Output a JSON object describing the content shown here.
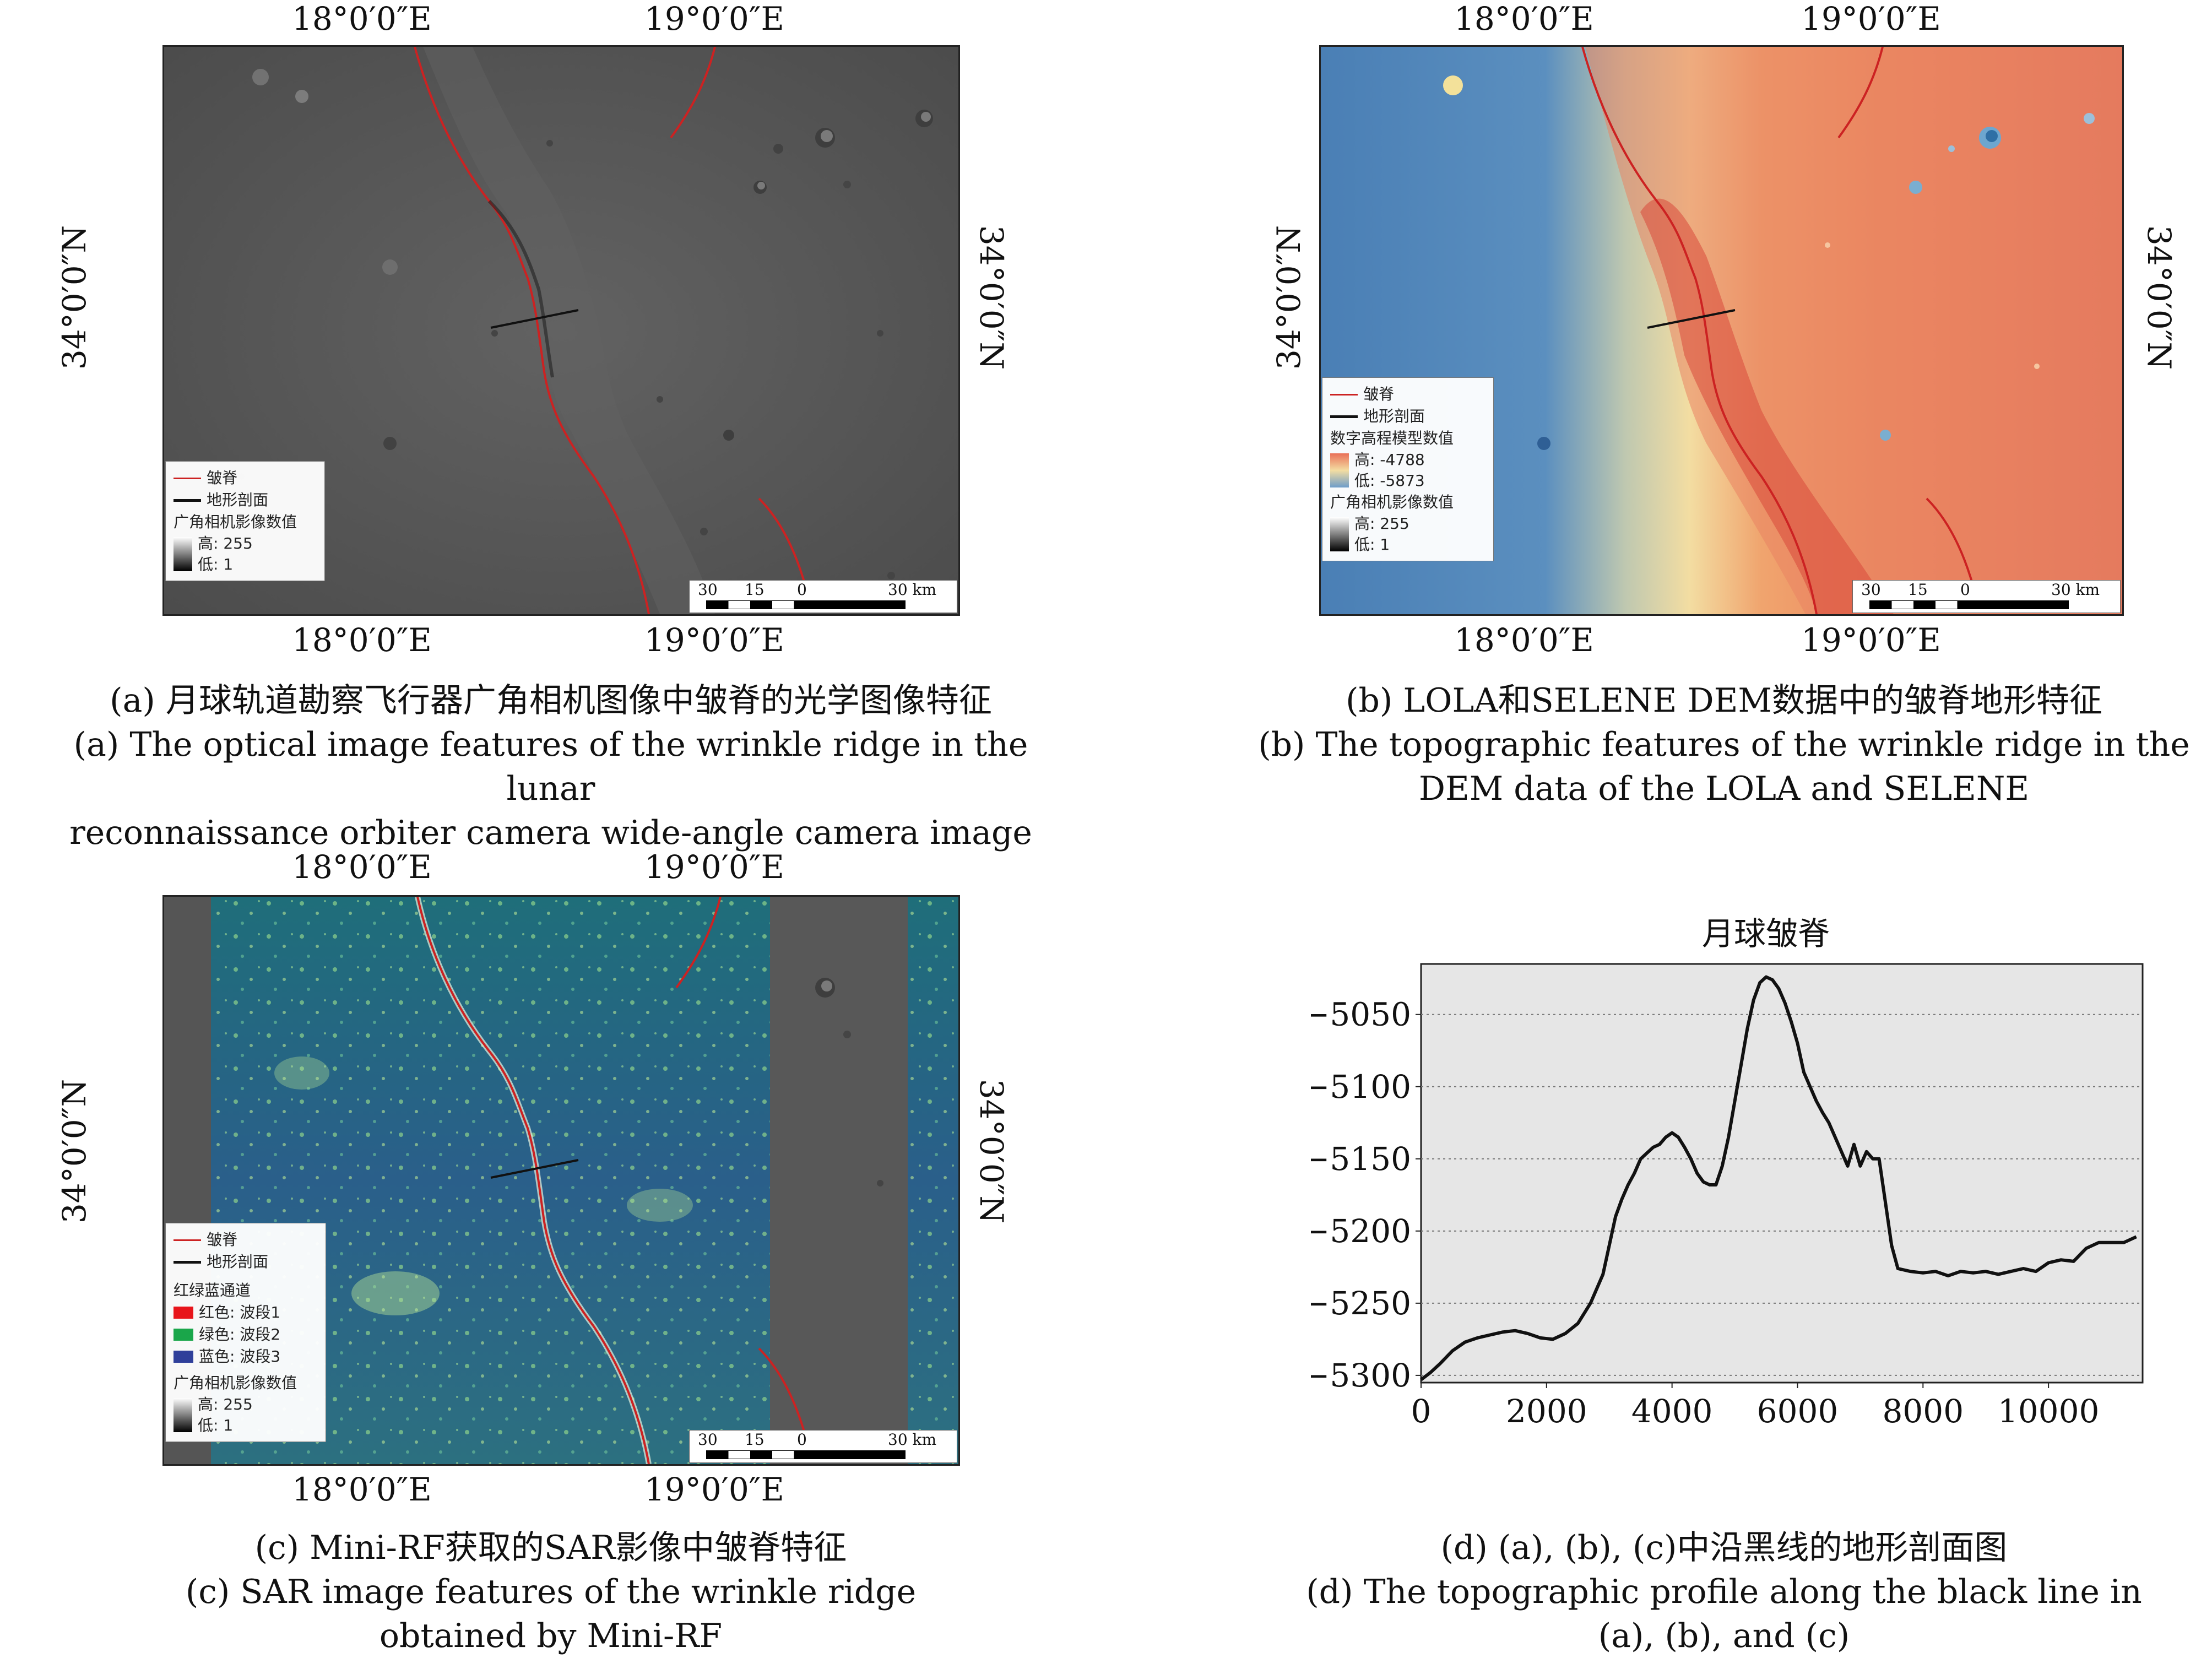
{
  "coords": {
    "lon_left": "18°0′0″E",
    "lon_right": "19°0′0″E",
    "lat": "34°0′0″N"
  },
  "legend_a": {
    "ridge": "皱脊",
    "profile": "地形剖面",
    "wac_title": "广角相机影像数值",
    "high": "高: 255",
    "low": "低: 1"
  },
  "legend_b": {
    "ridge": "皱脊",
    "profile": "地形剖面",
    "dem_title": "数字高程模型数值",
    "dem_high": "高: -4788",
    "dem_low": "低: -5873",
    "wac_title": "广角相机影像数值",
    "high": "高: 255",
    "low": "低: 1"
  },
  "legend_c": {
    "ridge": "皱脊",
    "profile": "地形剖面",
    "rgb_title": "红绿蓝通道",
    "red": "红色: 波段1",
    "green": "绿色: 波段2",
    "blue": "蓝色: 波段3",
    "wac_title": "广角相机影像数值",
    "high": "高: 255",
    "low": "低: 1"
  },
  "scalebar": {
    "t30": "30",
    "t15": "15",
    "t0": "0",
    "t30km": "30 km"
  },
  "colors": {
    "ridge": "#cc2222",
    "profile": "#111111"
  },
  "captions": {
    "a": {
      "zh": "(a) 月球轨道勘察飞行器广角相机图像中皱脊的光学图像特征",
      "en1": "(a) The optical image features of the wrinkle ridge in the lunar",
      "en2": "reconnaissance orbiter camera wide-angle camera image"
    },
    "b": {
      "zh": "(b) LOLA和SELENE DEM数据中的皱脊地形特征",
      "en1": "(b) The topographic features of the wrinkle ridge in the",
      "en2": "DEM data of the LOLA and SELENE"
    },
    "c": {
      "zh": "(c) Mini-RF获取的SAR影像中皱脊特征",
      "en1": "(c) SAR image features of the wrinkle ridge",
      "en2": "obtained by Mini-RF"
    },
    "d": {
      "zh": "(d) (a), (b), (c)中沿黑线的地形剖面图",
      "en1": "(d) The topographic profile along the black line in",
      "en2": "(a), (b), and (c)"
    }
  },
  "chart_data": {
    "type": "line",
    "title": "月球皱脊",
    "xlabel": "",
    "ylabel": "",
    "xlim": [
      0,
      11500
    ],
    "ylim": [
      -5305,
      -5015
    ],
    "xticks": [
      0,
      2000,
      4000,
      6000,
      8000,
      10000
    ],
    "yticks": [
      -5050,
      -5100,
      -5150,
      -5200,
      -5250,
      -5300
    ],
    "grid": "horizontal dotted",
    "series": [
      {
        "x": [
          0,
          150,
          300,
          500,
          700,
          900,
          1100,
          1300,
          1500,
          1700,
          1900,
          2100,
          2300,
          2500,
          2700,
          2900,
          3000,
          3100,
          3200,
          3300,
          3400,
          3500,
          3600,
          3700,
          3800,
          3900,
          4000,
          4100,
          4200,
          4300,
          4400,
          4500,
          4600,
          4700,
          4800,
          4900,
          5000,
          5100,
          5200,
          5300,
          5400,
          5500,
          5600,
          5700,
          5800,
          5900,
          6000,
          6100,
          6200,
          6300,
          6400,
          6500,
          6600,
          6700,
          6800,
          6900,
          7000,
          7100,
          7200,
          7300,
          7400,
          7500,
          7600,
          7800,
          8000,
          8200,
          8400,
          8600,
          8800,
          9000,
          9200,
          9400,
          9600,
          9800,
          10000,
          10200,
          10400,
          10600,
          10800,
          11000,
          11200,
          11400
        ],
        "y": [
          -5303,
          -5298,
          -5292,
          -5283,
          -5277,
          -5274,
          -5272,
          -5270,
          -5269,
          -5271,
          -5274,
          -5275,
          -5271,
          -5264,
          -5250,
          -5230,
          -5210,
          -5190,
          -5178,
          -5168,
          -5160,
          -5150,
          -5146,
          -5142,
          -5140,
          -5135,
          -5132,
          -5135,
          -5142,
          -5150,
          -5160,
          -5166,
          -5168,
          -5168,
          -5155,
          -5135,
          -5110,
          -5085,
          -5060,
          -5040,
          -5028,
          -5024,
          -5026,
          -5032,
          -5042,
          -5055,
          -5070,
          -5090,
          -5100,
          -5110,
          -5118,
          -5125,
          -5135,
          -5145,
          -5155,
          -5140,
          -5155,
          -5145,
          -5150,
          -5150,
          -5180,
          -5210,
          -5226,
          -5228,
          -5229,
          -5228,
          -5231,
          -5228,
          -5229,
          -5228,
          -5230,
          -5228,
          -5226,
          -5228,
          -5222,
          -5220,
          -5221,
          -5212,
          -5208,
          -5208,
          -5208,
          -5204
        ]
      }
    ]
  }
}
